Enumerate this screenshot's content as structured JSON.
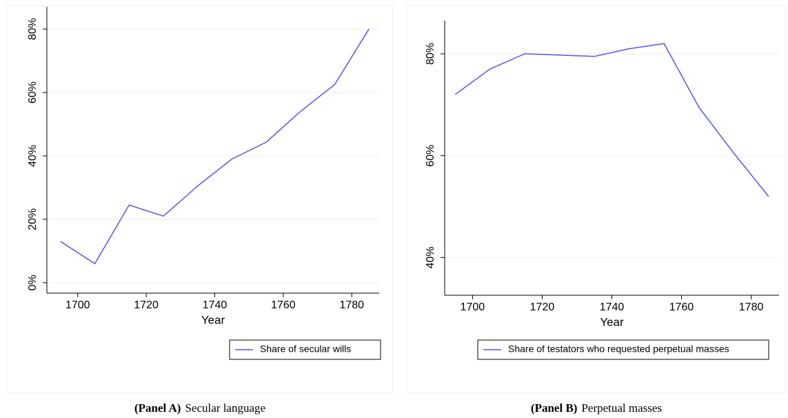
{
  "chart_data": [
    {
      "type": "line",
      "x": [
        1695,
        1705,
        1715,
        1725,
        1735,
        1745,
        1755,
        1765,
        1775,
        1785
      ],
      "series": [
        {
          "name": "Share of secular wills",
          "color": "#5555ee",
          "values": [
            13,
            6,
            24.5,
            21,
            30.5,
            39,
            44.3,
            54,
            62.5,
            80
          ]
        }
      ],
      "xlim": [
        1691,
        1788
      ],
      "xticks": [
        1700,
        1720,
        1740,
        1760,
        1780
      ],
      "ylim": [
        -3.3,
        87
      ],
      "yticks": [
        {
          "value": 0,
          "label": "0%"
        },
        {
          "value": 20,
          "label": "20%"
        },
        {
          "value": 40,
          "label": "40%"
        },
        {
          "value": 60,
          "label": "60%"
        },
        {
          "value": 80,
          "label": "80%"
        }
      ],
      "xlabel": "Year",
      "grid": true,
      "caption_label": "(Panel A)",
      "caption": "Secular language"
    },
    {
      "type": "line",
      "x": [
        1695,
        1705,
        1715,
        1735,
        1745,
        1755,
        1765,
        1775,
        1785
      ],
      "series": [
        {
          "name": "Share of testators who requested perpetual masses",
          "color": "#5555ee",
          "values": [
            72,
            77,
            80,
            79.5,
            81,
            82,
            69.5,
            60.5,
            52
          ]
        }
      ],
      "xlim": [
        1692,
        1788
      ],
      "xticks": [
        1700,
        1720,
        1740,
        1760,
        1780
      ],
      "ylim": [
        32.6,
        86.5
      ],
      "yticks": [
        {
          "value": 40,
          "label": "40%"
        },
        {
          "value": 60,
          "label": "60%"
        },
        {
          "value": 80,
          "label": "80%"
        }
      ],
      "xlabel": "Year",
      "grid": true,
      "caption_label": "(Panel B)",
      "caption": "Perpetual masses"
    }
  ]
}
